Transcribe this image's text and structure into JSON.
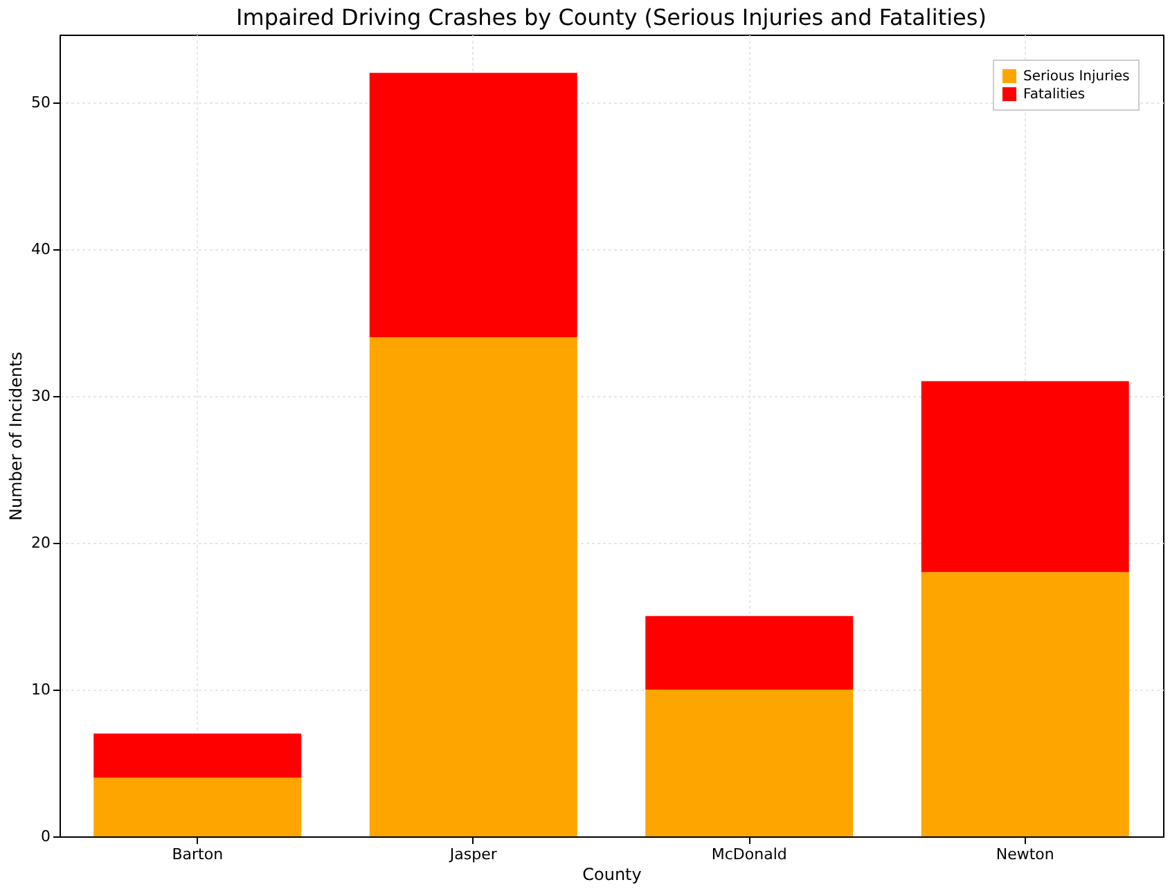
{
  "chart_data": {
    "type": "bar",
    "title": "Impaired Driving Crashes by County (Serious Injuries and Fatalities)",
    "xlabel": "County",
    "ylabel": "Number of Incidents",
    "categories": [
      "Barton",
      "Jasper",
      "McDonald",
      "Newton"
    ],
    "series": [
      {
        "name": "Serious Injuries",
        "color": "#ffa500",
        "values": [
          4,
          34,
          10,
          18
        ]
      },
      {
        "name": "Fatalities",
        "color": "#ff0000",
        "values": [
          3,
          18,
          5,
          13
        ]
      }
    ],
    "stacked": true,
    "ylim": [
      0,
      54.6
    ],
    "yticks": [
      0,
      10,
      20,
      30,
      40,
      50
    ],
    "grid": true,
    "legend": "top right"
  }
}
